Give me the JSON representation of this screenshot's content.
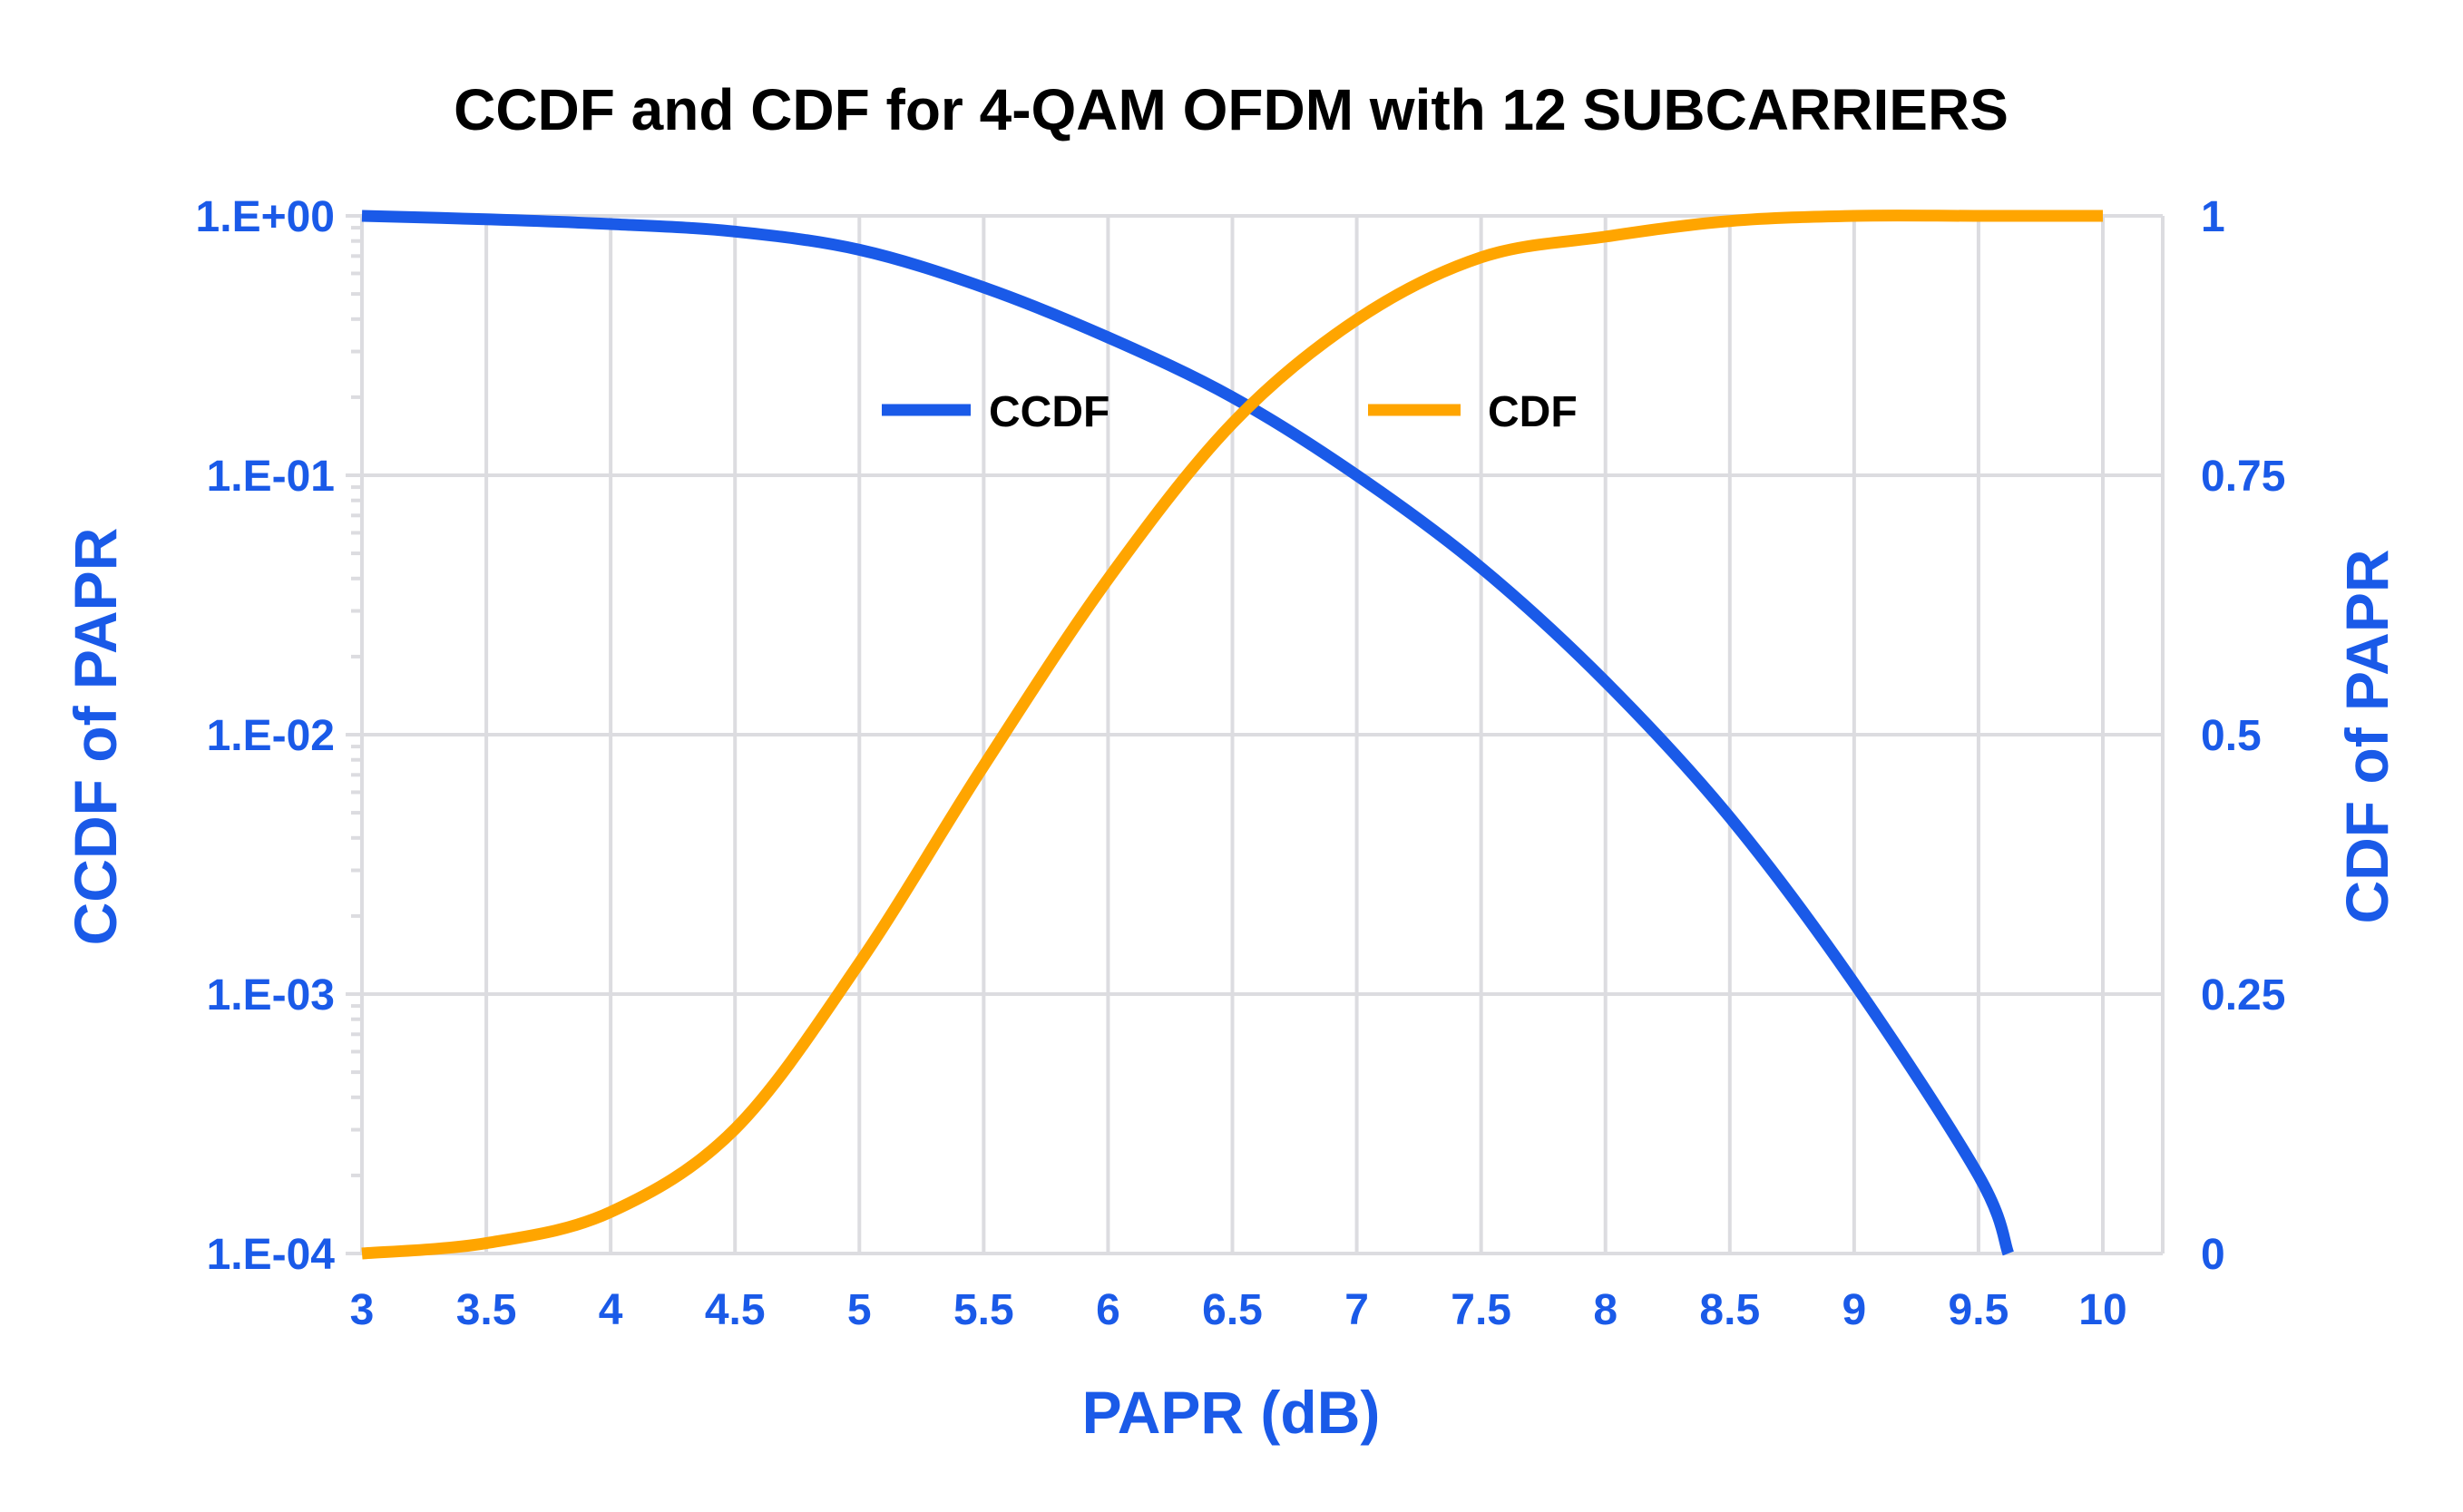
{
  "chart_data": {
    "type": "line",
    "title": "CCDF and CDF for 4-QAM OFDM with 12 SUBCARRIERS",
    "xlabel": "PAPR (dB)",
    "ylabel_left": "CCDF of PAPR",
    "ylabel_right": "CDF of PAPR",
    "xlim": [
      3,
      10
    ],
    "ylim_left": [
      0.0001,
      1
    ],
    "ylim_right": [
      0,
      1
    ],
    "y_left_scale": "log",
    "grid": true,
    "legend_position": "top-center-inside",
    "x_ticks": [
      "3",
      "3.5",
      "4",
      "4.5",
      "5",
      "5.5",
      "6",
      "6.5",
      "7",
      "7.5",
      "8",
      "8.5",
      "9",
      "9.5",
      "10"
    ],
    "y_left_ticks": [
      "1.E+00",
      "1.E-01",
      "1.E-02",
      "1.E-03",
      "1.E-04"
    ],
    "y_right_ticks": [
      "1",
      "0.75",
      "0.5",
      "0.25",
      "0"
    ],
    "colors": {
      "axis_text": "#1a5ae8",
      "ccdf": "#1a5ae8",
      "cdf": "#ffa500",
      "grid": "#dcdce0"
    },
    "series": [
      {
        "name": "CCDF",
        "axis": "left",
        "x": [
          3,
          3.5,
          4,
          4.5,
          5,
          5.5,
          6,
          6.5,
          7,
          7.5,
          8,
          8.5,
          9,
          9.5,
          9.62
        ],
        "values": [
          1.0,
          0.97,
          0.93,
          0.87,
          0.74,
          0.53,
          0.34,
          0.2,
          0.1,
          0.044,
          0.016,
          0.0048,
          0.0011,
          0.0002,
          0.0001
        ]
      },
      {
        "name": "CDF",
        "axis": "right",
        "x": [
          3,
          3.5,
          4,
          4.5,
          5,
          5.5,
          6,
          6.5,
          7,
          7.5,
          8,
          8.5,
          9,
          9.5,
          10
        ],
        "values": [
          0.0,
          0.01,
          0.04,
          0.12,
          0.28,
          0.47,
          0.65,
          0.8,
          0.9,
          0.96,
          0.98,
          0.995,
          1.0,
          1.0,
          1.0
        ]
      }
    ]
  }
}
